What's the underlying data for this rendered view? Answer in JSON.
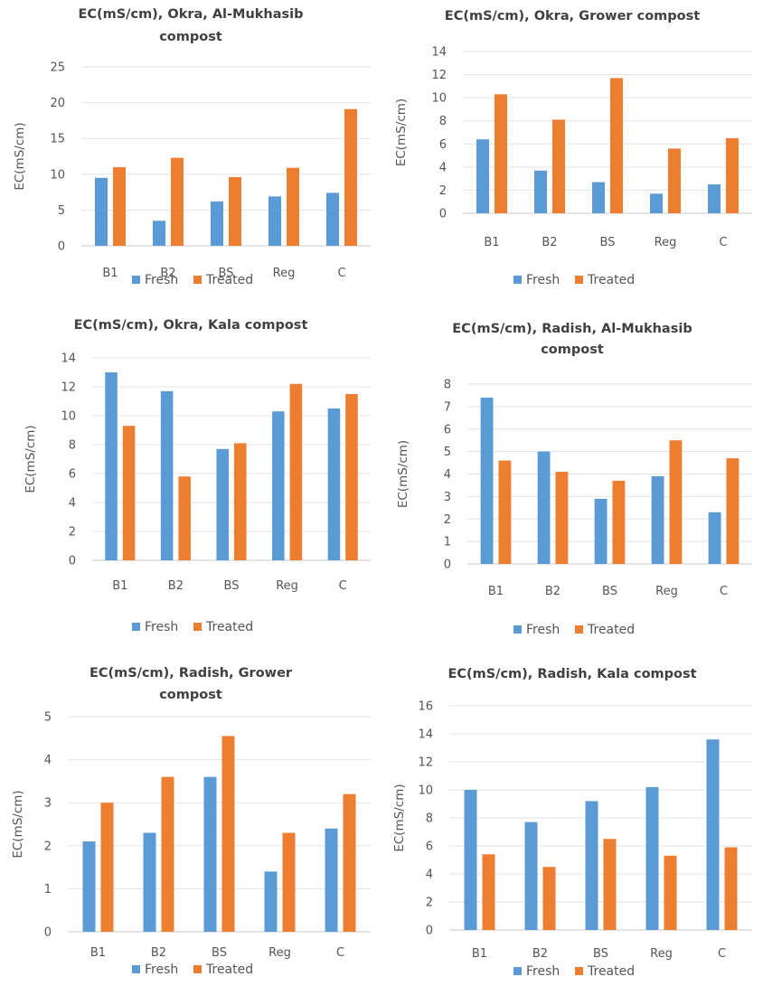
{
  "colors": {
    "fresh": "#5B9BD5",
    "treated": "#ED7D31"
  },
  "chart_data": [
    {
      "type": "bar",
      "title_lines": [
        "EC(mS/cm), Okra, Al-Mukhasib",
        "compost"
      ],
      "ylabel": "EC(mS/cm)",
      "categories": [
        "B1",
        "B2",
        "BS",
        "Reg",
        "C"
      ],
      "series": [
        {
          "name": "Fresh",
          "values": [
            9.5,
            3.5,
            6.2,
            6.9,
            7.4
          ]
        },
        {
          "name": "Treated",
          "values": [
            11.0,
            12.3,
            9.6,
            10.9,
            19.1
          ]
        }
      ],
      "yticks": [
        "0",
        "5",
        "10",
        "15",
        "20",
        "25"
      ],
      "ylim": [
        0,
        25
      ],
      "grid": true,
      "legend": "bottom"
    },
    {
      "type": "bar",
      "title_lines": [
        "EC(mS/cm), Okra, Grower compost"
      ],
      "ylabel": "EC(mS/cm)",
      "categories": [
        "B1",
        "B2",
        "BS",
        "Reg",
        "C"
      ],
      "series": [
        {
          "name": "Fresh",
          "values": [
            6.4,
            3.7,
            2.7,
            1.7,
            2.5
          ]
        },
        {
          "name": "Treated",
          "values": [
            10.3,
            8.1,
            11.7,
            5.6,
            6.5
          ]
        }
      ],
      "yticks": [
        "0",
        "2",
        "4",
        "6",
        "8",
        "10",
        "12",
        "14"
      ],
      "ylim": [
        0,
        14
      ],
      "grid": true,
      "legend": "bottom"
    },
    {
      "type": "bar",
      "title_lines": [
        "EC(mS/cm), Okra, Kala compost"
      ],
      "ylabel": "EC(mS/cm)",
      "categories": [
        "B1",
        "B2",
        "BS",
        "Reg",
        "C"
      ],
      "series": [
        {
          "name": "Fresh",
          "values": [
            13.0,
            11.7,
            7.7,
            10.3,
            10.5
          ]
        },
        {
          "name": "Treated",
          "values": [
            9.3,
            5.8,
            8.1,
            12.2,
            11.5
          ]
        }
      ],
      "yticks": [
        "0",
        "2",
        "4",
        "6",
        "8",
        "10",
        "12",
        "14"
      ],
      "ylim": [
        0,
        14
      ],
      "grid": true,
      "legend": "bottom"
    },
    {
      "type": "bar",
      "title_lines": [
        "EC(mS/cm), Radish, Al-Mukhasib",
        "compost"
      ],
      "ylabel": "EC(mS/cm)",
      "categories": [
        "B1",
        "B2",
        "BS",
        "Reg",
        "C"
      ],
      "series": [
        {
          "name": "Fresh",
          "values": [
            7.4,
            5.0,
            2.9,
            3.9,
            2.3
          ]
        },
        {
          "name": "Treated",
          "values": [
            4.6,
            4.1,
            3.7,
            5.5,
            4.7
          ]
        }
      ],
      "yticks": [
        "0",
        "1",
        "2",
        "3",
        "4",
        "5",
        "6",
        "7",
        "8"
      ],
      "ylim": [
        0,
        8
      ],
      "grid": true,
      "legend": "bottom"
    },
    {
      "type": "bar",
      "title_lines": [
        "EC(mS/cm), Radish, Grower",
        "compost"
      ],
      "ylabel": "EC(mS/cm)",
      "categories": [
        "B1",
        "B2",
        "BS",
        "Reg",
        "C"
      ],
      "series": [
        {
          "name": "Fresh",
          "values": [
            2.1,
            2.3,
            3.6,
            1.4,
            2.4
          ]
        },
        {
          "name": "Treated",
          "values": [
            3.0,
            3.6,
            4.55,
            2.3,
            3.2
          ]
        }
      ],
      "yticks": [
        "0",
        "1",
        "2",
        "3",
        "4",
        "5"
      ],
      "ylim": [
        0,
        5
      ],
      "grid": true,
      "legend": "bottom"
    },
    {
      "type": "bar",
      "title_lines": [
        "EC(mS/cm), Radish, Kala compost"
      ],
      "ylabel": "EC(mS/cm)",
      "categories": [
        "B1",
        "B2",
        "BS",
        "Reg",
        "C"
      ],
      "series": [
        {
          "name": "Fresh",
          "values": [
            10.0,
            7.7,
            9.2,
            10.2,
            13.6
          ]
        },
        {
          "name": "Treated",
          "values": [
            5.4,
            4.5,
            6.5,
            5.3,
            5.9
          ]
        }
      ],
      "yticks": [
        "0",
        "2",
        "4",
        "6",
        "8",
        "10",
        "12",
        "14",
        "16"
      ],
      "ylim": [
        0,
        16
      ],
      "grid": true,
      "legend": "bottom"
    }
  ]
}
